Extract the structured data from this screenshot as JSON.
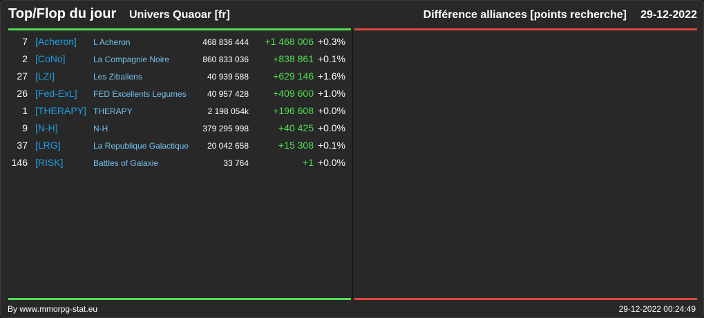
{
  "header": {
    "title": "Top/Flop du jour",
    "subtitle": "Univers Quaoar [fr]",
    "right_title": "Différence alliances [points recherche]",
    "date": "29-12-2022"
  },
  "colors": {
    "top_bar": "#4fe04f",
    "flop_bar": "#e0473b",
    "tag": "#1f9ee0",
    "name": "#73c2ee",
    "gain": "#4fe04f"
  },
  "top_rows": [
    {
      "rank": "7",
      "tag": "[Acheron]",
      "name": "L Acheron",
      "points": "468 836 444",
      "diff": "+1 468 006",
      "pct": "+0.3%"
    },
    {
      "rank": "2",
      "tag": "[CoNo]",
      "name": "La Compagnie Noire",
      "points": "860 833 036",
      "diff": "+838 861",
      "pct": "+0.1%"
    },
    {
      "rank": "27",
      "tag": "[LZI]",
      "name": "Les Zibaliens",
      "points": "40 939 588",
      "diff": "+629 146",
      "pct": "+1.6%"
    },
    {
      "rank": "26",
      "tag": "[Fed-ExL]",
      "name": "FED Excellents Legumes",
      "points": "40 957 428",
      "diff": "+409 600",
      "pct": "+1.0%"
    },
    {
      "rank": "1",
      "tag": "[THERAPY]",
      "name": "THERAPY",
      "points": "2 198 054k",
      "diff": "+196 608",
      "pct": "+0.0%"
    },
    {
      "rank": "9",
      "tag": "[N-H]",
      "name": "N-H",
      "points": "379 295 998",
      "diff": "+40 425",
      "pct": "+0.0%"
    },
    {
      "rank": "37",
      "tag": "[LRG]",
      "name": "La Republique Galactique",
      "points": "20 042 658",
      "diff": "+15 308",
      "pct": "+0.1%"
    },
    {
      "rank": "146",
      "tag": "[RISK]",
      "name": "Battles of Galaxie",
      "points": "33 764",
      "diff": "+1",
      "pct": "+0.0%"
    }
  ],
  "footer": {
    "left": "By www.mmorpg-stat.eu",
    "right": "29-12-2022 00:24:49"
  }
}
